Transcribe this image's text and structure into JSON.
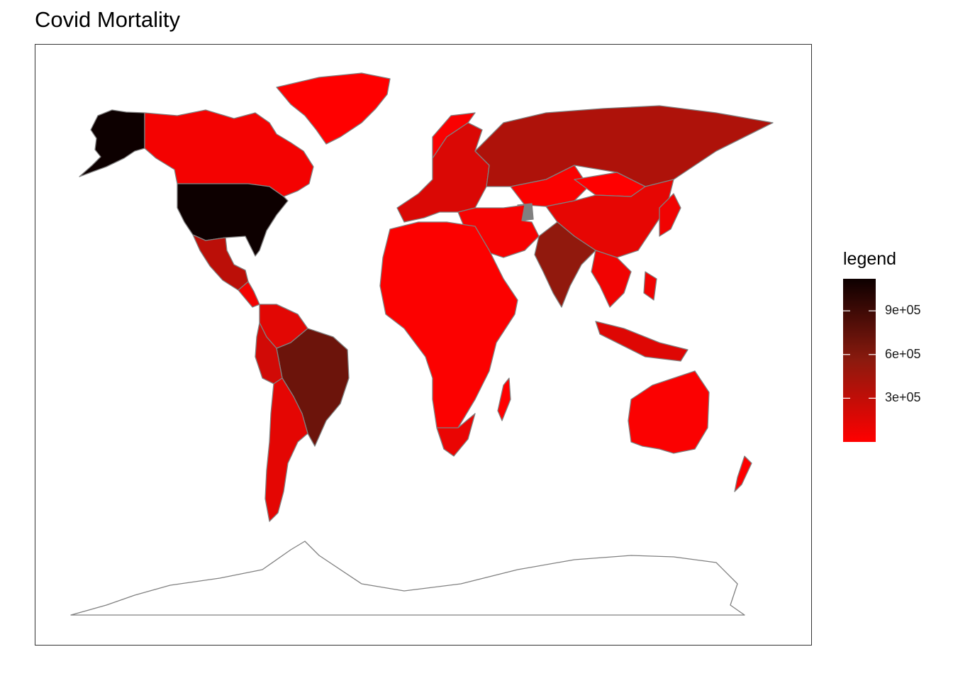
{
  "title": "Covid Mortality",
  "legend": {
    "title": "legend",
    "ticks": [
      "3e+05",
      "6e+05",
      "9e+05"
    ],
    "tick_values": [
      300000,
      600000,
      900000
    ],
    "range": [
      0,
      1120000
    ],
    "colors": {
      "low": "#ff0000",
      "mid": "#8b1a0e",
      "high": "#0d0000"
    }
  },
  "map": {
    "type": "choropleth",
    "border_color": "#808080",
    "no_data_color": "#808080",
    "values": {
      "United States": 1120000,
      "Brazil": 700000,
      "India": 530000,
      "Russia": 390000,
      "Mexico": 330000,
      "Peru": 220000,
      "China": 120000,
      "Colombia": 140000,
      "Argentina": 130000,
      "Canada": 52000,
      "Australia": 20000,
      "South Africa": 102000,
      "Mongolia": 2100,
      "Kazakhstan": 19000,
      "Greenland": 21,
      "Turkmenistan": null
    }
  }
}
